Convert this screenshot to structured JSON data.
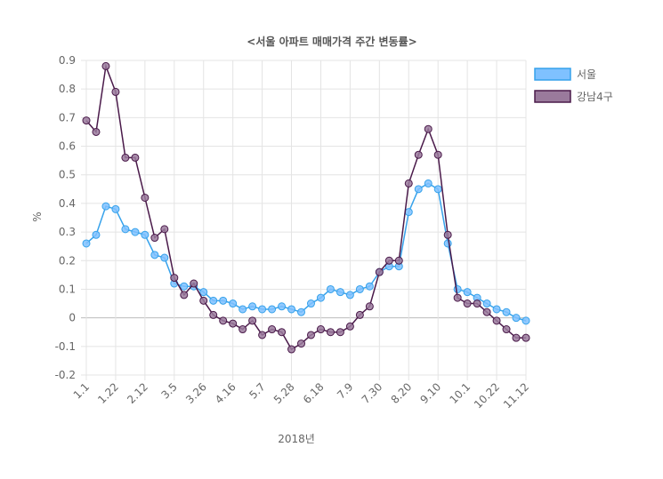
{
  "chart_data": {
    "type": "line",
    "title": "<서울 아파트 매매가격 주간 변동률>",
    "xlabel": "2018년",
    "ylabel": "%",
    "ylim": [
      -0.2,
      0.9
    ],
    "yticks": [
      "0.9",
      "0.8",
      "0.7",
      "0.6",
      "0.5",
      "0.4",
      "0.3",
      "0.2",
      "0.1",
      "0",
      "-0.1",
      "-0.2"
    ],
    "xtick_labels": [
      "1.1",
      "1.22",
      "2.12",
      "3.5",
      "3.26",
      "4.16",
      "5.7",
      "5.28",
      "6.18",
      "7.9",
      "7.30",
      "8.20",
      "9.10",
      "10.1",
      "10.22",
      "11.12"
    ],
    "grid": true,
    "legend_position": "right",
    "series": [
      {
        "name": "서울",
        "color": "#36a2eb",
        "fill": "#7fc1ff",
        "values": [
          0.26,
          0.29,
          0.39,
          0.38,
          0.31,
          0.3,
          0.29,
          0.22,
          0.21,
          0.12,
          0.11,
          0.11,
          0.09,
          0.06,
          0.06,
          0.05,
          0.03,
          0.04,
          0.03,
          0.03,
          0.04,
          0.03,
          0.02,
          0.05,
          0.07,
          0.1,
          0.09,
          0.08,
          0.1,
          0.11,
          0.16,
          0.18,
          0.18,
          0.37,
          0.45,
          0.47,
          0.45,
          0.26,
          0.1,
          0.09,
          0.07,
          0.05,
          0.03,
          0.02,
          0.0,
          -0.01
        ]
      },
      {
        "name": "강남4구",
        "color": "#4a1a4a",
        "fill": "#9a7a9c",
        "values": [
          0.69,
          0.65,
          0.88,
          0.79,
          0.56,
          0.56,
          0.42,
          0.28,
          0.31,
          0.14,
          0.08,
          0.12,
          0.06,
          0.01,
          -0.01,
          -0.02,
          -0.04,
          -0.01,
          -0.06,
          -0.04,
          -0.05,
          -0.11,
          -0.09,
          -0.06,
          -0.04,
          -0.05,
          -0.05,
          -0.03,
          0.01,
          0.04,
          0.16,
          0.2,
          0.2,
          0.47,
          0.57,
          0.66,
          0.57,
          0.29,
          0.07,
          0.05,
          0.05,
          0.02,
          -0.01,
          -0.04,
          -0.07,
          -0.07
        ]
      }
    ]
  }
}
